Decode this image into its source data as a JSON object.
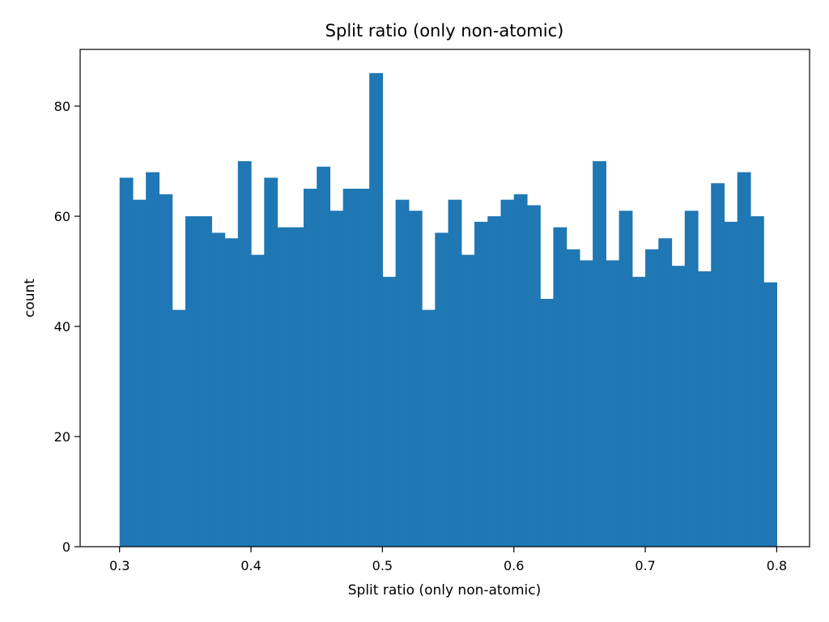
{
  "chart_data": {
    "type": "bar",
    "title": "Split ratio (only non-atomic)",
    "xlabel": "Split ratio (only non-atomic)",
    "ylabel": "count",
    "xlim": [
      0.27,
      0.825
    ],
    "ylim": [
      0,
      90.3
    ],
    "bin_start": 0.3,
    "bin_end": 0.8,
    "xticks": [
      0.3,
      0.4,
      0.5,
      0.6,
      0.7,
      0.8
    ],
    "xtick_labels": [
      "0.3",
      "0.4",
      "0.5",
      "0.6",
      "0.7",
      "0.8"
    ],
    "yticks": [
      0,
      20,
      40,
      60,
      80
    ],
    "ytick_labels": [
      "0",
      "20",
      "40",
      "60",
      "80"
    ],
    "grid": false,
    "bar_color": "#1f77b4",
    "values": [
      67,
      63,
      68,
      64,
      43,
      60,
      60,
      57,
      56,
      70,
      53,
      67,
      58,
      58,
      65,
      69,
      61,
      65,
      65,
      86,
      49,
      63,
      61,
      43,
      57,
      63,
      53,
      59,
      60,
      63,
      64,
      62,
      45,
      58,
      54,
      52,
      70,
      52,
      61,
      49,
      54,
      56,
      51,
      61,
      50,
      66,
      59,
      68,
      60,
      48
    ]
  }
}
